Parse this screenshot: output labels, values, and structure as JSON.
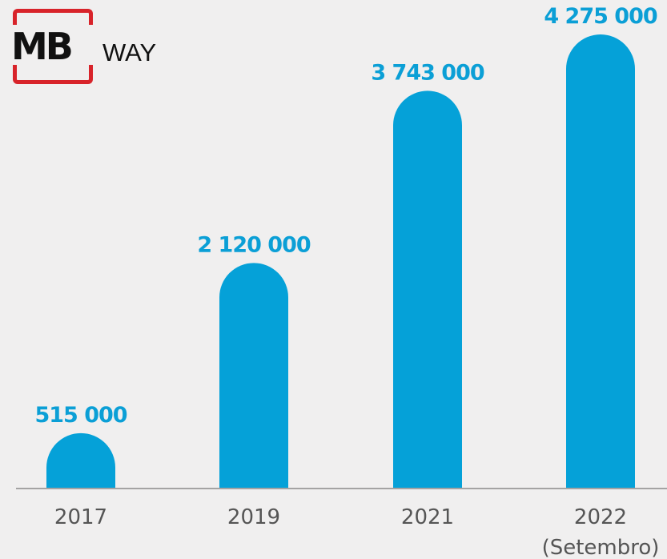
{
  "logo": {
    "mb": "MB",
    "way": "WAY"
  },
  "colors": {
    "bar": "#05a1d8",
    "label": "#0b9fd6",
    "axis": "#8a8a8a",
    "logo_red": "#d8232a"
  },
  "chart_data": {
    "type": "bar",
    "categories": [
      "2017",
      "2019",
      "2021",
      "2022"
    ],
    "category_sublabels": [
      "",
      "",
      "",
      "(Setembro)"
    ],
    "values": [
      515000,
      2120000,
      3743000,
      4275000
    ],
    "value_labels": [
      "515 000",
      "2 120 000",
      "3 743 000",
      "4 275 000"
    ],
    "title": "",
    "xlabel": "",
    "ylabel": "",
    "grid": false,
    "legend": "none"
  }
}
